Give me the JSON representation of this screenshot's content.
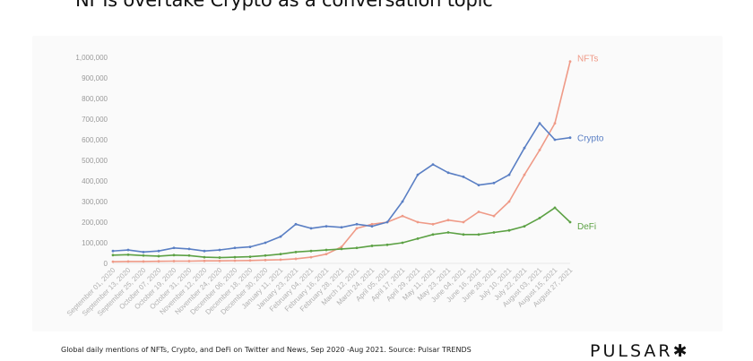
{
  "header": {
    "title": "NFTs overtake Crypto as a conversation topic"
  },
  "caption": "Global daily mentions of NFTs, Crypto, and DeFi on Twitter and News, Sep 2020 -Aug 2021. Source: Pulsar TRENDS",
  "logo": {
    "text": "PULSAR",
    "mark": "✱"
  },
  "colors": {
    "nfts": "#ef9a87",
    "crypto": "#5a7fc4",
    "defi": "#5ca144",
    "tick": "#9a9a9a",
    "grid": "#e8e8e8"
  },
  "chart_data": {
    "type": "line",
    "title": "",
    "xlabel": "",
    "ylabel": "",
    "ylim": [
      0,
      1000000
    ],
    "y_ticks": [
      "0",
      "100,000",
      "200,000",
      "300,000",
      "400,000",
      "500,000",
      "600,000",
      "700,000",
      "800,000",
      "900,000",
      "1,000,000"
    ],
    "x_ticks": [
      "September 01, 2020",
      "September 13, 2020",
      "September 25, 2020",
      "October 07, 2020",
      "October 19, 2020",
      "October 31, 2020",
      "November 12, 2020",
      "November 24, 2020",
      "December 06, 2020",
      "December 18, 2020",
      "December 30, 2020",
      "January 11, 2021",
      "January 23, 2021",
      "February 04, 2021",
      "February 16, 2021",
      "February 28, 2021",
      "March 12, 2021",
      "March 24, 2021",
      "April 05, 2021",
      "April 17, 2021",
      "April 29, 2021",
      "May 11, 2021",
      "May 23, 2021",
      "June 04, 2021",
      "June 16, 2021",
      "June 28, 2021",
      "July 10, 2021",
      "July 22, 2021",
      "August 03, 2021",
      "August 15, 2021",
      "August 27, 2021"
    ],
    "grid": false,
    "legend": "labels at line ends (right)",
    "series": [
      {
        "name": "NFTs",
        "values": [
          8000,
          9000,
          9000,
          10000,
          11000,
          11000,
          12000,
          12000,
          13000,
          14000,
          16000,
          18000,
          22000,
          30000,
          45000,
          80000,
          170000,
          190000,
          200000,
          230000,
          200000,
          190000,
          210000,
          200000,
          250000,
          230000,
          300000,
          430000,
          550000,
          680000,
          980000
        ]
      },
      {
        "name": "Crypto",
        "values": [
          60000,
          65000,
          55000,
          60000,
          75000,
          70000,
          60000,
          65000,
          75000,
          80000,
          100000,
          130000,
          190000,
          170000,
          180000,
          175000,
          190000,
          180000,
          200000,
          300000,
          430000,
          480000,
          440000,
          420000,
          380000,
          390000,
          430000,
          560000,
          680000,
          600000,
          610000
        ]
      },
      {
        "name": "DeFi",
        "values": [
          40000,
          42000,
          38000,
          35000,
          40000,
          38000,
          30000,
          28000,
          30000,
          32000,
          38000,
          45000,
          55000,
          60000,
          65000,
          70000,
          75000,
          85000,
          90000,
          100000,
          120000,
          140000,
          150000,
          140000,
          140000,
          150000,
          160000,
          180000,
          220000,
          270000,
          200000
        ]
      }
    ]
  }
}
